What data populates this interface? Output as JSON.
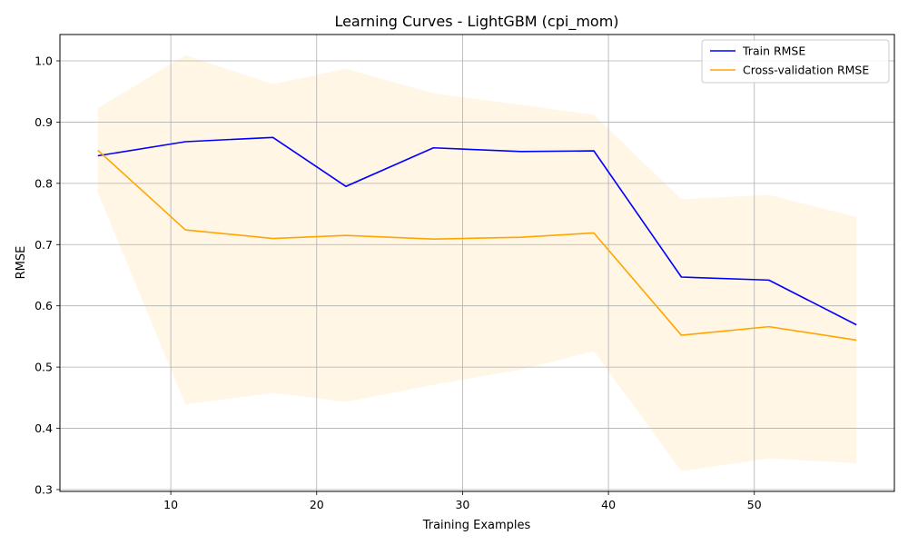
{
  "chart_data": {
    "type": "line",
    "title": "Learning Curves - LightGBM (cpi_mom)",
    "xlabel": "Training Examples",
    "ylabel": "RMSE",
    "xlim": [
      2.4,
      59.6
    ],
    "ylim": [
      0.297,
      1.043
    ],
    "xticks": [
      10,
      20,
      30,
      40,
      50
    ],
    "yticks": [
      0.3,
      0.4,
      0.5,
      0.6,
      0.7,
      0.8,
      0.9,
      1.0
    ],
    "grid": true,
    "legend_position": "top-right",
    "x": [
      5,
      11,
      17,
      22,
      28,
      34,
      39,
      45,
      51,
      57
    ],
    "series": [
      {
        "name": "Train RMSE",
        "color": "#0000ff",
        "values": [
          0.845,
          0.868,
          0.875,
          0.795,
          0.858,
          0.852,
          0.853,
          0.647,
          0.642,
          0.569
        ]
      },
      {
        "name": "Cross-validation RMSE",
        "color": "#ffa500",
        "values": [
          0.854,
          0.724,
          0.71,
          0.715,
          0.709,
          0.712,
          0.719,
          0.552,
          0.566,
          0.544
        ],
        "band_upper": [
          0.923,
          1.009,
          0.962,
          0.987,
          0.947,
          0.928,
          0.912,
          0.774,
          0.781,
          0.745
        ],
        "band_lower": [
          0.785,
          0.439,
          0.458,
          0.443,
          0.471,
          0.496,
          0.526,
          0.33,
          0.351,
          0.343
        ],
        "band_color": "#ffa500",
        "band_opacity": 0.1
      }
    ]
  }
}
